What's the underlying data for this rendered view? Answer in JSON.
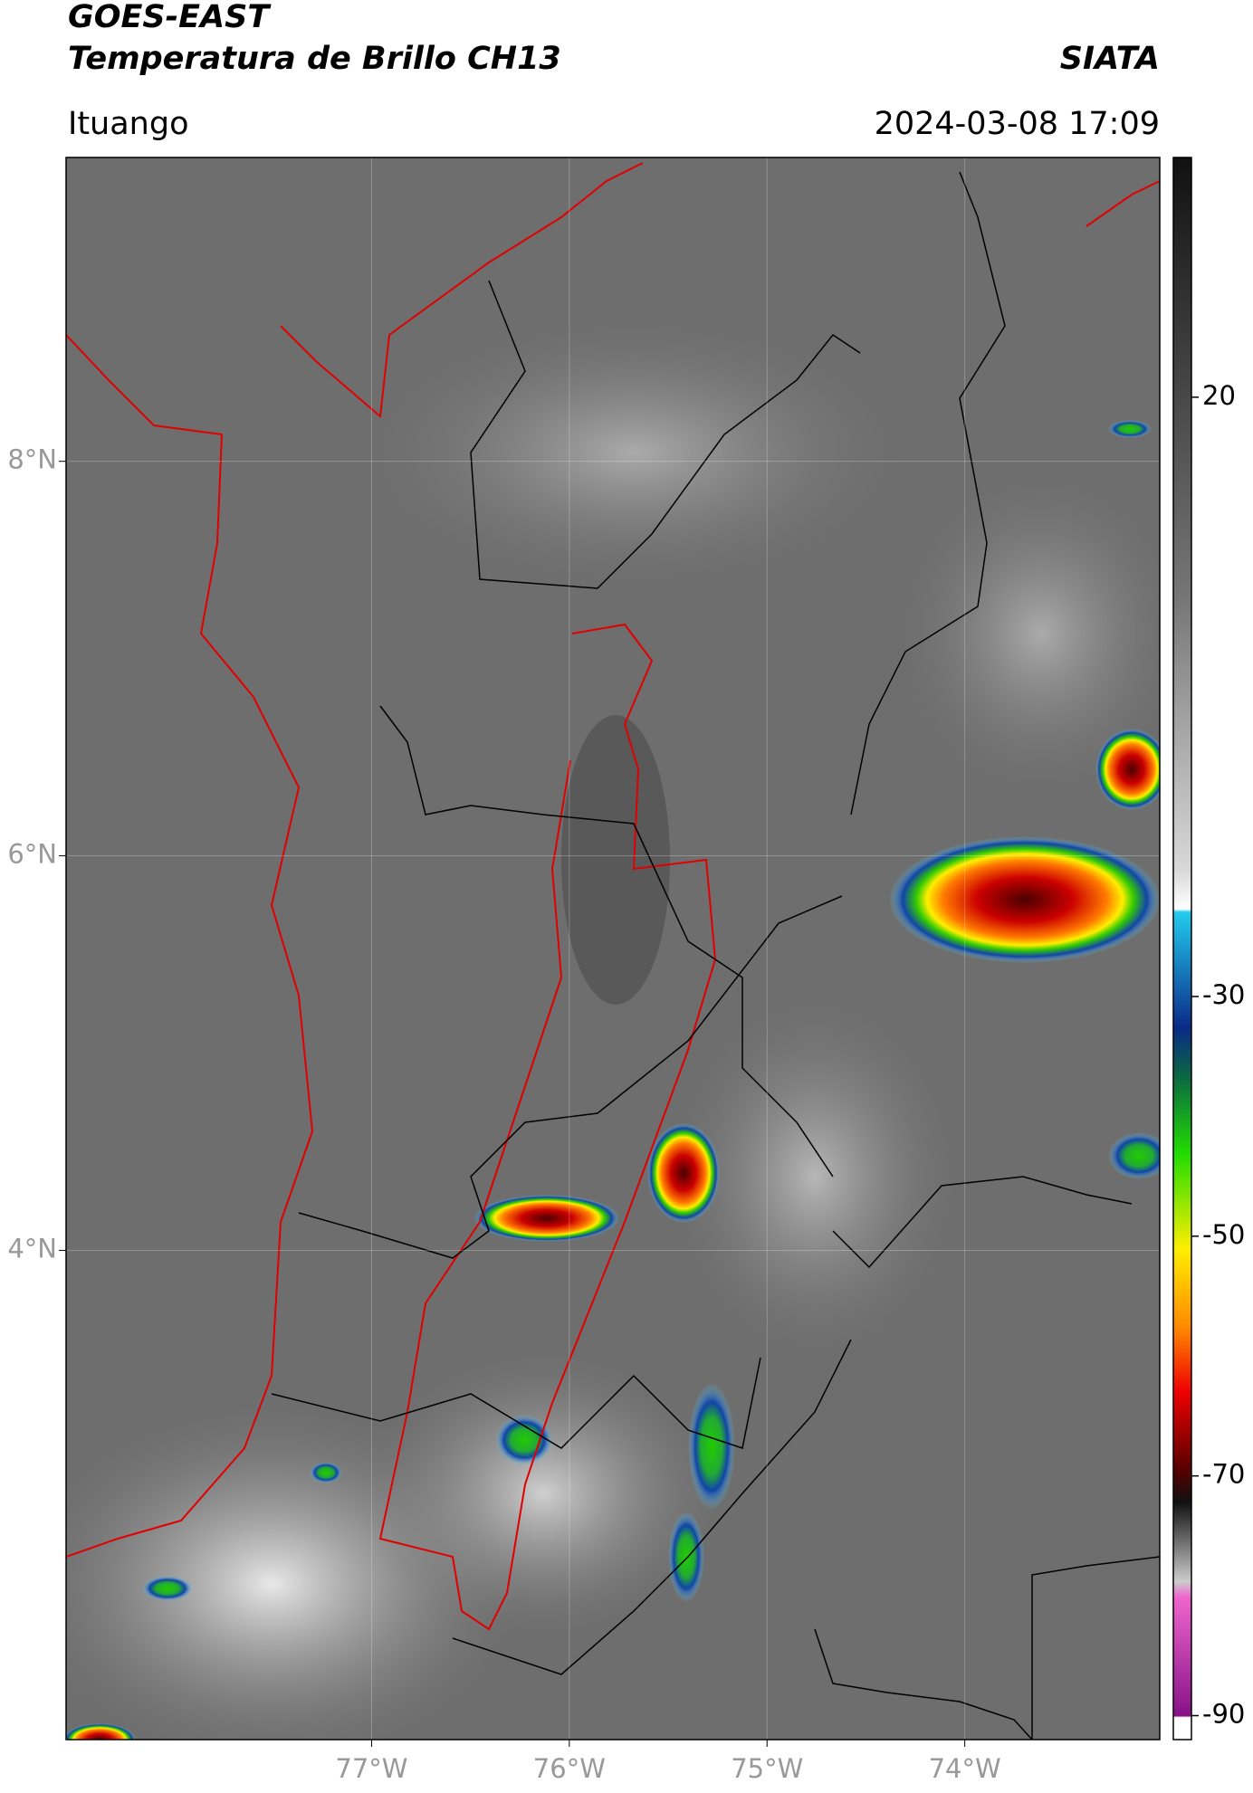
{
  "header": {
    "title": "GOES-EAST",
    "subtitle": "Temperatura de Brillo CH13",
    "organization": "SIATA",
    "location": "Ituango",
    "datetime": "2024-03-08 17:09"
  },
  "map": {
    "xlim": [
      -78.545,
      -73.014
    ],
    "ylim": [
      1.52,
      9.54
    ],
    "xticks": [
      {
        "value": -77,
        "label": "77°W"
      },
      {
        "value": -76,
        "label": "76°W"
      },
      {
        "value": -75,
        "label": "75°W"
      },
      {
        "value": -74,
        "label": "74°W"
      }
    ],
    "yticks": [
      {
        "value": 8,
        "label": "8°N"
      },
      {
        "value": 6,
        "label": "6°N"
      },
      {
        "value": 4,
        "label": "4°N"
      }
    ]
  },
  "colorbar": {
    "lim": [
      -92,
      40
    ],
    "ticks": [
      20,
      -30,
      -50,
      -70,
      -90
    ]
  }
}
